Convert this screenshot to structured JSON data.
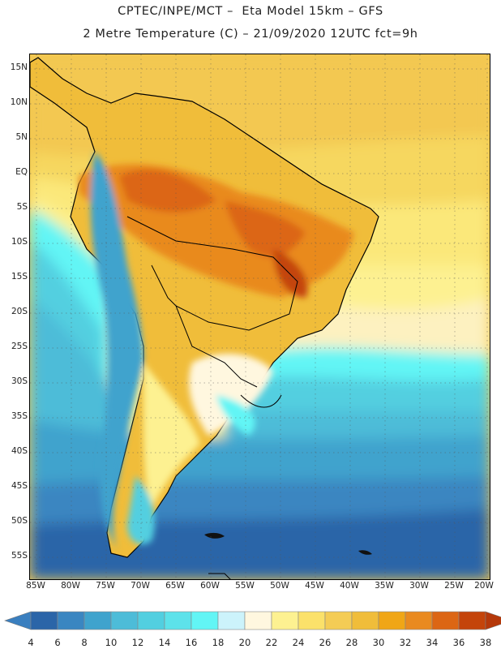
{
  "header": {
    "title_line1": "CPTEC/INPE/MCT –  Eta Model 15km – GFS",
    "title_line2": "2 Metre Temperature (C) – 21/09/2020 12UTC fct=9h"
  },
  "map": {
    "region": "South America",
    "lat_labels": [
      "15N",
      "10N",
      "5N",
      "EQ",
      "5S",
      "10S",
      "15S",
      "20S",
      "25S",
      "30S",
      "35S",
      "40S",
      "45S",
      "50S",
      "55S"
    ],
    "lon_labels": [
      "85W",
      "80W",
      "75W",
      "70W",
      "65W",
      "60W",
      "55W",
      "50W",
      "45W",
      "40W",
      "35W",
      "30W",
      "25W",
      "20W"
    ]
  },
  "legend": {
    "unit": "C",
    "labels": [
      "4",
      "6",
      "8",
      "10",
      "12",
      "14",
      "16",
      "18",
      "20",
      "22",
      "24",
      "26",
      "28",
      "30",
      "32",
      "34",
      "36",
      "38"
    ],
    "colors": [
      "#3a7fbf",
      "#2b65a8",
      "#3a86c1",
      "#3fa3cd",
      "#4dbcd8",
      "#52cfe0",
      "#5de2ea",
      "#62f5f5",
      "#ccf3fb",
      "#fff7df",
      "#fdf191",
      "#fbe16a",
      "#f4cc55",
      "#f0bd3a",
      "#f0a616",
      "#e98a1f",
      "#dc6614",
      "#c4440a",
      "#b5380a"
    ]
  }
}
